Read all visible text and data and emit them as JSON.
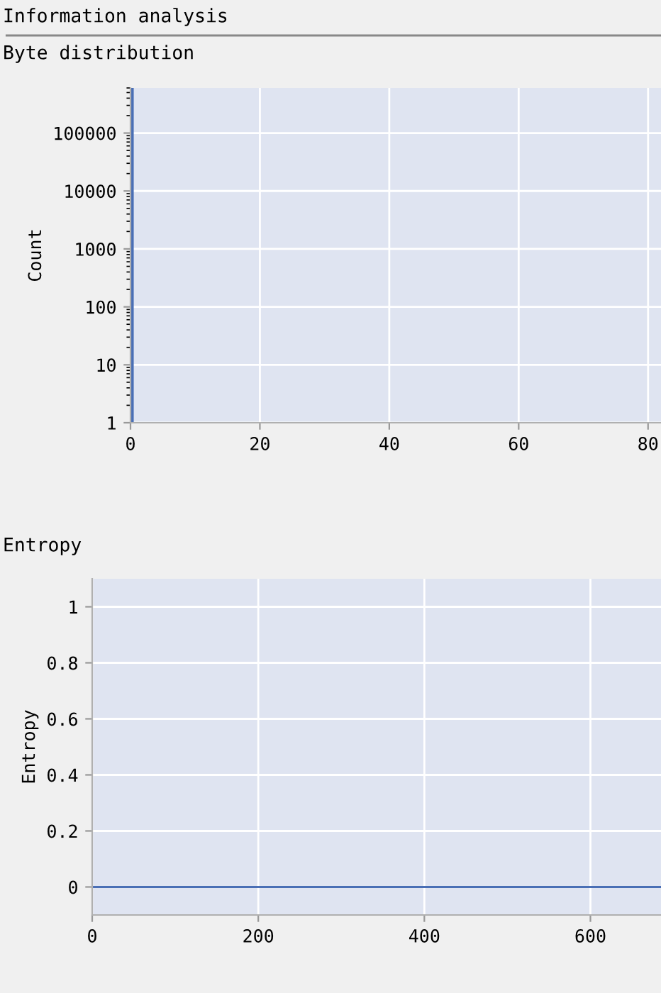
{
  "chart_data": [
    {
      "type": "histogram",
      "title": "Information analysis",
      "subtitle": "Byte distribution",
      "ylabel": "Count",
      "bins": [
        0,
        0.5
      ],
      "values": [
        600000
      ],
      "color": "#4a6fb5",
      "log": "y",
      "xlim": [
        0,
        82
      ],
      "xticks": [
        0,
        20,
        40,
        60,
        80
      ],
      "ylim": [
        1,
        600000
      ],
      "yticks": [
        1,
        10,
        100,
        1000,
        10000,
        100000
      ],
      "grid": true
    },
    {
      "type": "line",
      "title": "Entropy",
      "ylabel": "Entropy",
      "series": [
        {
          "color": "#4a6fb5",
          "x": [
            0,
            685
          ],
          "values": [
            0,
            0
          ]
        }
      ],
      "xlim": [
        0,
        685
      ],
      "xticks": [
        0,
        200,
        400,
        600
      ],
      "ylim": [
        -0.1,
        1.1
      ],
      "yticks": [
        0,
        0.2,
        0.4,
        0.6,
        0.8,
        1
      ],
      "grid": true
    }
  ]
}
